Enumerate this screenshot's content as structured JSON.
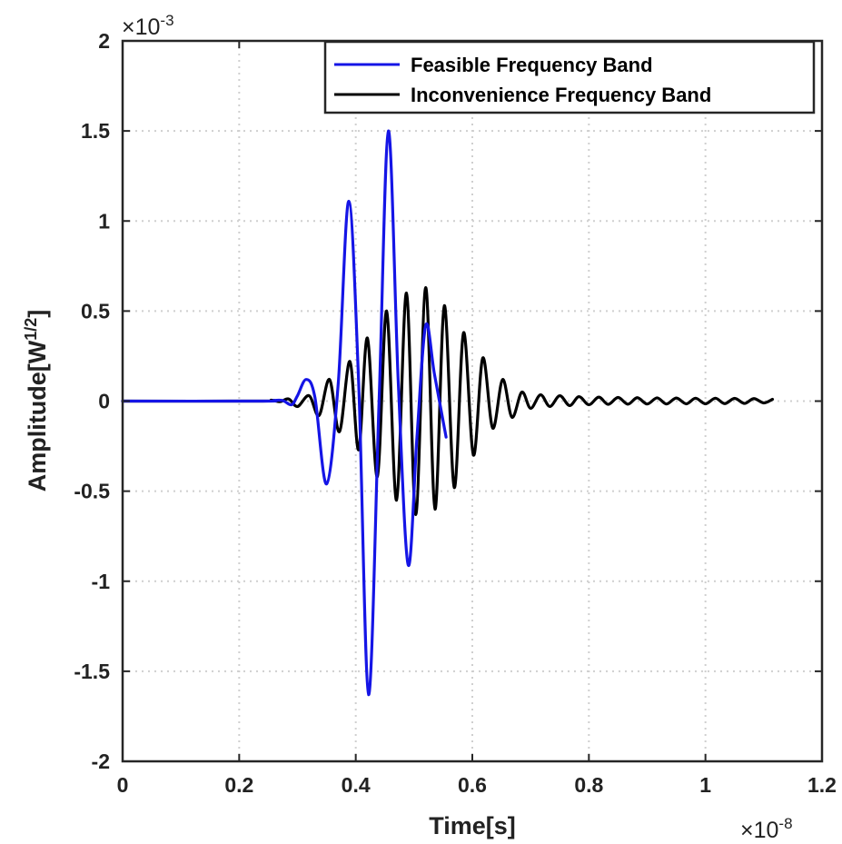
{
  "chart_data": {
    "type": "line",
    "xlabel": "Time[s]",
    "ylabel": "Amplitude[W",
    "ylabel_sup": "1/2",
    "ylabel_close": "]",
    "x_exponent_label": "×10",
    "x_exponent": "-8",
    "y_exponent_label": "×10",
    "y_exponent": "-3",
    "x_units_scale": 1e-08,
    "y_units_scale": 0.001,
    "xlim": [
      0,
      1.2
    ],
    "ylim": [
      -2,
      2
    ],
    "xticks": [
      0,
      0.2,
      0.4,
      0.6,
      0.8,
      1,
      1.2
    ],
    "xtick_labels": [
      "0",
      "0.2",
      "0.4",
      "0.6",
      "0.8",
      "1",
      "1.2"
    ],
    "yticks": [
      -2,
      -1.5,
      -1,
      -0.5,
      0,
      0.5,
      1,
      1.5,
      2
    ],
    "ytick_labels": [
      "-2",
      "-1.5",
      "-1",
      "-0.5",
      "0",
      "0.5",
      "1",
      "1.5",
      "2"
    ],
    "grid": true,
    "legend_position": "top-right",
    "series": [
      {
        "name": "Feasible Frequency Band",
        "color": "#1515e6",
        "x": [
          0,
          0.24,
          0.26,
          0.275,
          0.29,
          0.3,
          0.315,
          0.33,
          0.35,
          0.37,
          0.388,
          0.405,
          0.422,
          0.44,
          0.456,
          0.473,
          0.49,
          0.505,
          0.52,
          0.535,
          0.555
        ],
        "y": [
          0,
          0,
          0.004,
          0.003,
          -0.02,
          0.03,
          0.12,
          0.02,
          -0.46,
          0.1,
          1.11,
          0.1,
          -1.63,
          0.0,
          1.5,
          0.1,
          -0.91,
          -0.2,
          0.42,
          0.15,
          -0.2
        ]
      },
      {
        "name": "Inconvenience Frequency Band",
        "color": "#000000",
        "x": [
          0,
          0.24,
          0.255,
          0.27,
          0.285,
          0.3,
          0.32,
          0.337,
          0.355,
          0.372,
          0.39,
          0.405,
          0.42,
          0.437,
          0.453,
          0.47,
          0.487,
          0.503,
          0.52,
          0.536,
          0.552,
          0.569,
          0.585,
          0.602,
          0.618,
          0.635,
          0.652,
          0.668,
          0.685,
          0.7,
          0.717,
          0.733,
          0.75,
          0.767,
          0.783,
          0.8,
          0.817,
          0.833,
          0.85,
          0.867,
          0.883,
          0.9,
          0.917,
          0.933,
          0.95,
          0.967,
          0.983,
          1.0,
          1.017,
          1.033,
          1.05,
          1.067,
          1.083,
          1.1,
          1.115
        ],
        "y": [
          0,
          0,
          0.005,
          -0.003,
          0.012,
          -0.03,
          0.03,
          -0.08,
          0.12,
          -0.17,
          0.22,
          -0.27,
          0.35,
          -0.42,
          0.5,
          -0.55,
          0.6,
          -0.63,
          0.63,
          -0.6,
          0.53,
          -0.48,
          0.38,
          -0.3,
          0.24,
          -0.15,
          0.12,
          -0.09,
          0.05,
          -0.04,
          0.035,
          -0.03,
          0.03,
          -0.025,
          0.025,
          -0.02,
          0.022,
          -0.018,
          0.02,
          -0.017,
          0.019,
          -0.016,
          0.018,
          -0.016,
          0.017,
          -0.015,
          0.016,
          -0.015,
          0.016,
          -0.014,
          0.015,
          -0.013,
          0.014,
          -0.01,
          0.01
        ]
      }
    ]
  }
}
